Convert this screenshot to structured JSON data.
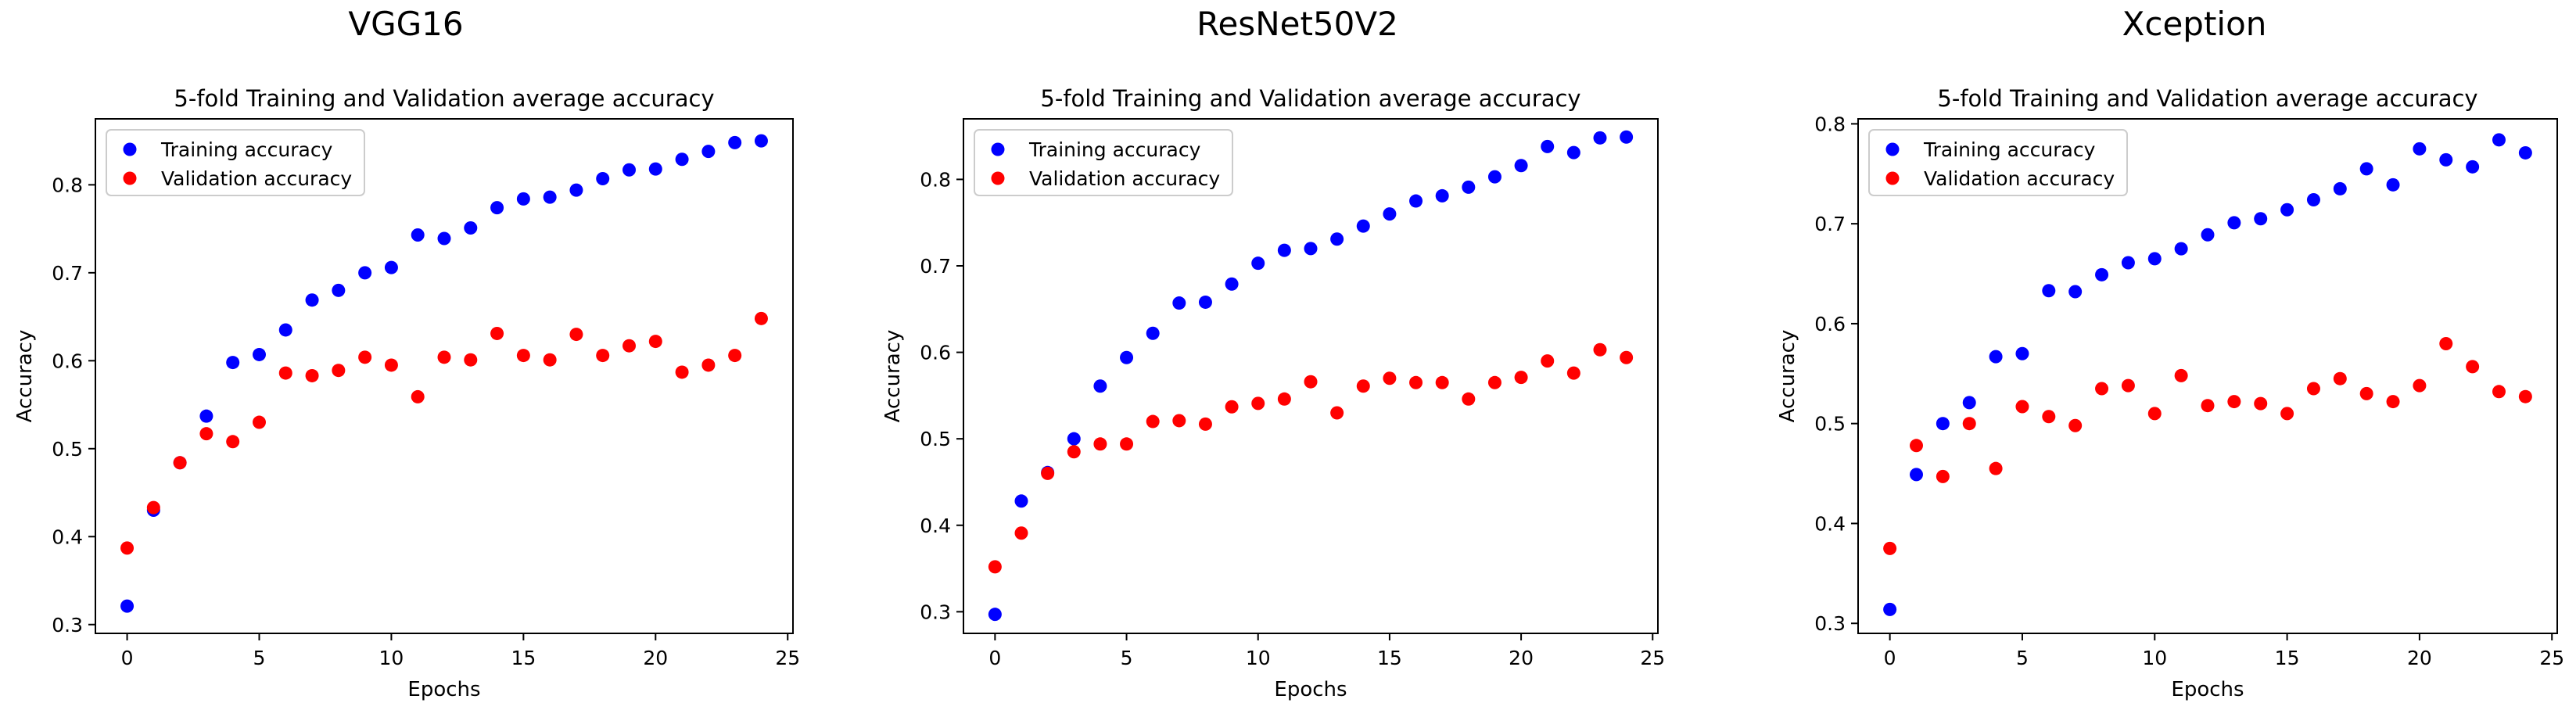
{
  "chart_data": [
    {
      "type": "scatter",
      "model_title": "VGG16",
      "title": "5-fold Training and Validation average accuracy",
      "xlabel": "Epochs",
      "ylabel": "Accuracy",
      "xlim": [
        -1.2,
        25.2
      ],
      "ylim": [
        0.29,
        0.875
      ],
      "xticks": [
        0,
        5,
        10,
        15,
        20,
        25
      ],
      "yticks": [
        0.3,
        0.4,
        0.5,
        0.6,
        0.7,
        0.8
      ],
      "legend_position": "top-left",
      "x": [
        0,
        1,
        2,
        3,
        4,
        5,
        6,
        7,
        8,
        9,
        10,
        11,
        12,
        13,
        14,
        15,
        16,
        17,
        18,
        19,
        20,
        21,
        22,
        23,
        24
      ],
      "series": [
        {
          "name": "Training accuracy",
          "color": "#0000ff",
          "values": [
            0.321,
            0.43,
            0.484,
            0.537,
            0.598,
            0.607,
            0.635,
            0.669,
            0.68,
            0.7,
            0.706,
            0.743,
            0.739,
            0.751,
            0.774,
            0.784,
            0.786,
            0.794,
            0.807,
            0.817,
            0.818,
            0.829,
            0.838,
            0.848,
            0.85
          ]
        },
        {
          "name": "Validation accuracy",
          "color": "#ff0000",
          "values": [
            0.387,
            0.433,
            0.484,
            0.517,
            0.508,
            0.53,
            0.586,
            0.583,
            0.589,
            0.604,
            0.595,
            0.559,
            0.604,
            0.601,
            0.631,
            0.606,
            0.601,
            0.63,
            0.606,
            0.617,
            0.622,
            0.587,
            0.595,
            0.606,
            0.648
          ]
        }
      ]
    },
    {
      "type": "scatter",
      "model_title": "ResNet50V2",
      "title": "5-fold Training and Validation average accuracy",
      "xlabel": "Epochs",
      "ylabel": "Accuracy",
      "xlim": [
        -1.2,
        25.2
      ],
      "ylim": [
        0.275,
        0.87
      ],
      "xticks": [
        0,
        5,
        10,
        15,
        20,
        25
      ],
      "yticks": [
        0.3,
        0.4,
        0.5,
        0.6,
        0.7,
        0.8
      ],
      "legend_position": "top-left",
      "x": [
        0,
        1,
        2,
        3,
        4,
        5,
        6,
        7,
        8,
        9,
        10,
        11,
        12,
        13,
        14,
        15,
        16,
        17,
        18,
        19,
        20,
        21,
        22,
        23,
        24
      ],
      "series": [
        {
          "name": "Training accuracy",
          "color": "#0000ff",
          "values": [
            0.297,
            0.428,
            0.461,
            0.5,
            0.561,
            0.594,
            0.622,
            0.657,
            0.658,
            0.679,
            0.703,
            0.718,
            0.72,
            0.731,
            0.746,
            0.76,
            0.775,
            0.781,
            0.791,
            0.803,
            0.816,
            0.838,
            0.831,
            0.848,
            0.849
          ]
        },
        {
          "name": "Validation accuracy",
          "color": "#ff0000",
          "values": [
            0.352,
            0.391,
            0.46,
            0.485,
            0.494,
            0.494,
            0.52,
            0.521,
            0.517,
            0.537,
            0.541,
            0.546,
            0.566,
            0.53,
            0.561,
            0.57,
            0.565,
            0.565,
            0.546,
            0.565,
            0.571,
            0.59,
            0.576,
            0.603,
            0.594
          ]
        }
      ]
    },
    {
      "type": "scatter",
      "model_title": "Xception",
      "title": "5-fold Training and Validation average accuracy",
      "xlabel": "Epochs",
      "ylabel": "Accuracy",
      "xlim": [
        -1.2,
        25.2
      ],
      "ylim": [
        0.29,
        0.805
      ],
      "xticks": [
        0,
        5,
        10,
        15,
        20,
        25
      ],
      "yticks": [
        0.3,
        0.4,
        0.5,
        0.6,
        0.7,
        0.8
      ],
      "legend_position": "top-left",
      "x": [
        0,
        1,
        2,
        3,
        4,
        5,
        6,
        7,
        8,
        9,
        10,
        11,
        12,
        13,
        14,
        15,
        16,
        17,
        18,
        19,
        20,
        21,
        22,
        23,
        24
      ],
      "series": [
        {
          "name": "Training accuracy",
          "color": "#0000ff",
          "values": [
            0.314,
            0.449,
            0.5,
            0.521,
            0.567,
            0.57,
            0.633,
            0.632,
            0.649,
            0.661,
            0.665,
            0.675,
            0.689,
            0.701,
            0.705,
            0.714,
            0.724,
            0.735,
            0.755,
            0.739,
            0.775,
            0.764,
            0.757,
            0.784,
            0.771
          ]
        },
        {
          "name": "Validation accuracy",
          "color": "#ff0000",
          "values": [
            0.375,
            0.478,
            0.447,
            0.5,
            0.455,
            0.517,
            0.507,
            0.498,
            0.535,
            0.538,
            0.51,
            0.548,
            0.518,
            0.522,
            0.52,
            0.51,
            0.535,
            0.545,
            0.53,
            0.522,
            0.538,
            0.58,
            0.557,
            0.532,
            0.527
          ]
        }
      ]
    }
  ]
}
